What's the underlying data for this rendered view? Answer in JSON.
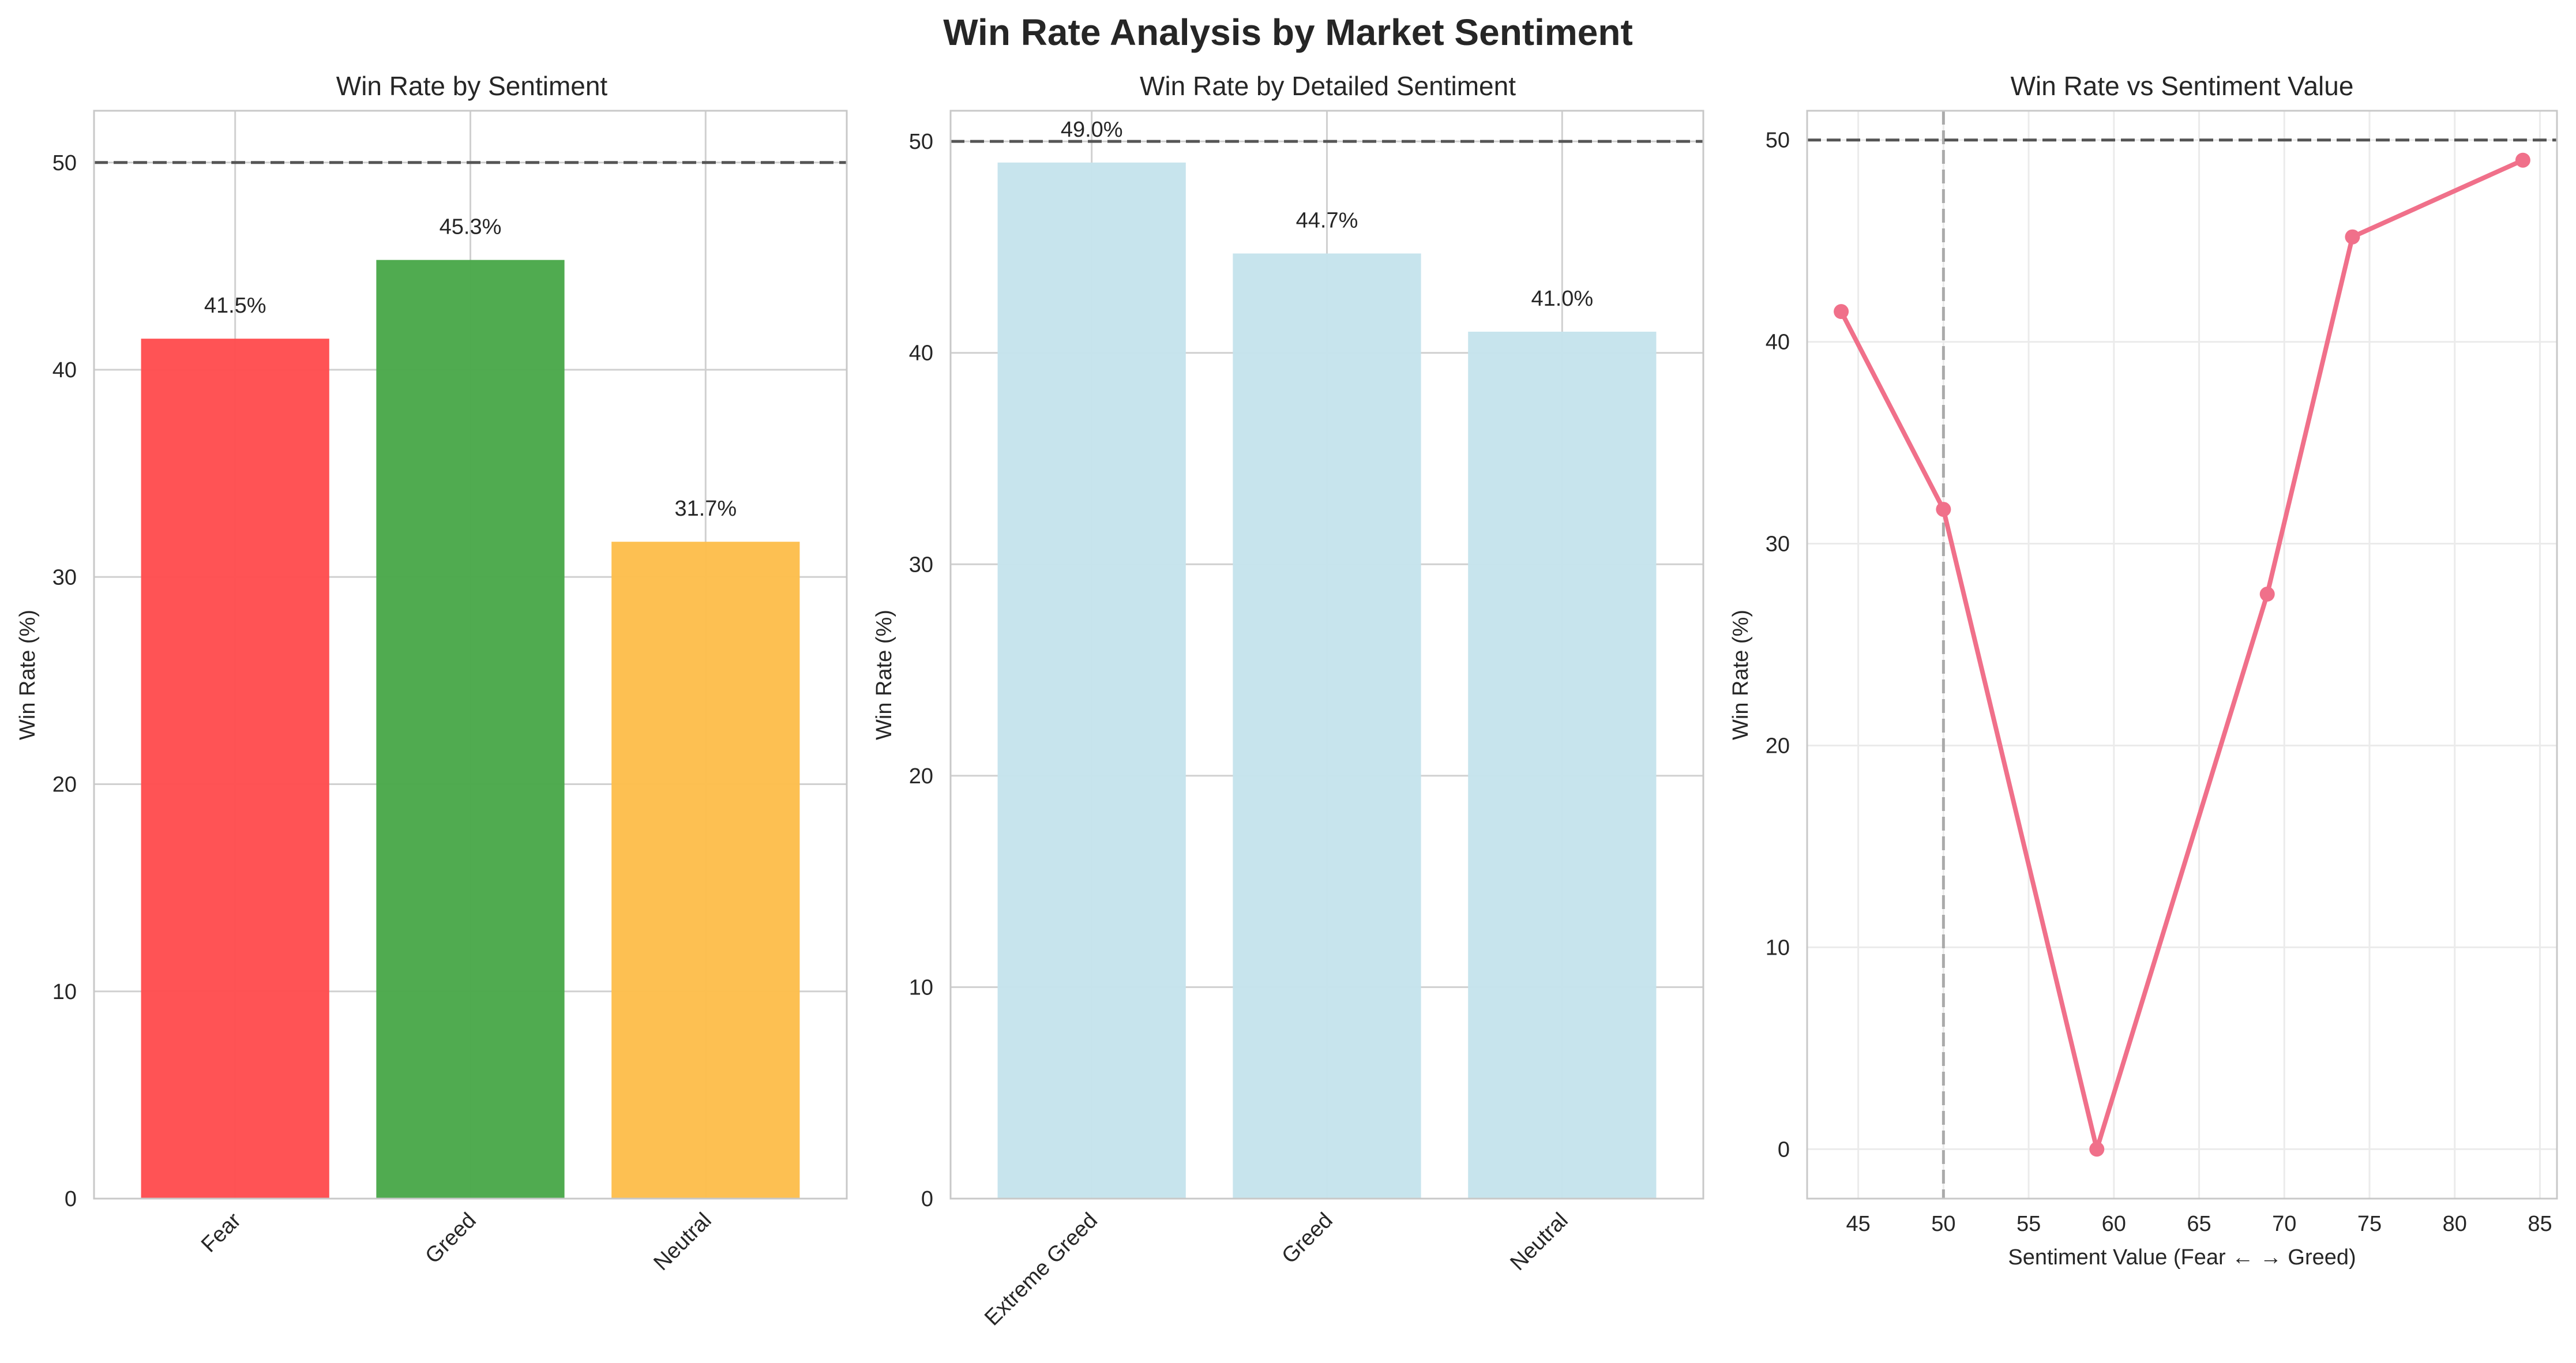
{
  "figure": {
    "suptitle": "Win Rate Analysis by Market Sentiment"
  },
  "chart_data": [
    {
      "type": "bar",
      "title": "Win Rate by Sentiment",
      "xlabel": "",
      "ylabel": "Win Rate (%)",
      "ylim": [
        0,
        52.5
      ],
      "yticks": [
        0,
        10,
        20,
        30,
        40,
        50
      ],
      "categories": [
        "Fear",
        "Greed",
        "Neutral"
      ],
      "values": [
        41.5,
        45.3,
        31.7
      ],
      "data_labels": [
        "41.5%",
        "45.3%",
        "31.7%"
      ],
      "colors": [
        "#ff4d4f",
        "#4aa84a",
        "#fdbe4c"
      ],
      "reference_line_y": 50,
      "grid": true,
      "xtick_rotation": 45
    },
    {
      "type": "bar",
      "title": "Win Rate by Detailed Sentiment",
      "xlabel": "",
      "ylabel": "Win Rate (%)",
      "ylim": [
        0,
        51.45
      ],
      "yticks": [
        0,
        10,
        20,
        30,
        40,
        50
      ],
      "categories": [
        "Extreme Greed",
        "Greed",
        "Neutral"
      ],
      "values": [
        49.0,
        44.7,
        41.0
      ],
      "data_labels": [
        "49.0%",
        "44.7%",
        "41.0%"
      ],
      "colors": [
        "#c5e3ec",
        "#c5e3ec",
        "#c5e3ec"
      ],
      "reference_line_y": 50,
      "grid": true,
      "xtick_rotation": 45
    },
    {
      "type": "line",
      "title": "Win Rate vs Sentiment Value",
      "xlabel": "Sentiment Value (Fear ← → Greed)",
      "ylabel": "Win Rate (%)",
      "xlim": [
        42,
        86
      ],
      "ylim": [
        -2.45,
        51.45
      ],
      "xticks": [
        45,
        50,
        55,
        60,
        65,
        70,
        75,
        80,
        85
      ],
      "yticks": [
        0,
        10,
        20,
        30,
        40,
        50
      ],
      "x": [
        44,
        50,
        59,
        69,
        74,
        84
      ],
      "y": [
        41.5,
        31.7,
        0.0,
        27.5,
        45.2,
        49.0
      ],
      "color": "#f0708a",
      "reference_line_y": 50,
      "reference_line_x": 50,
      "grid": true
    }
  ]
}
